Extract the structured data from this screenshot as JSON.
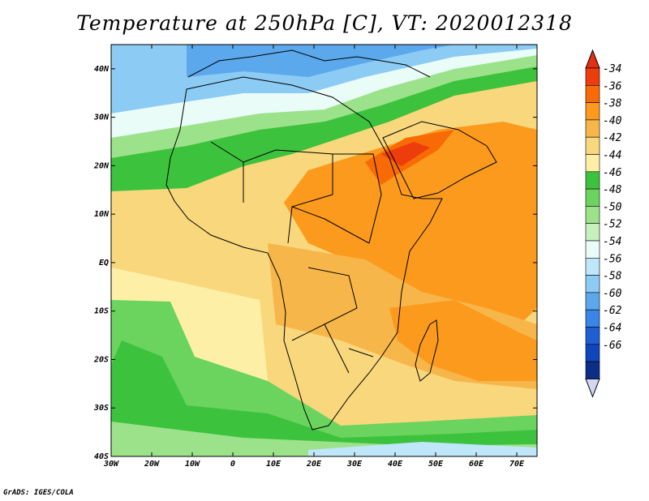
{
  "title": "Temperature at 250hPa [C], VT: 2020012318",
  "credit": "GrADS: IGES/COLA",
  "map": {
    "lon_range": [
      -30,
      75
    ],
    "lat_range": [
      -40,
      45
    ],
    "x_ticks": [
      {
        "value": -30,
        "label": "30W"
      },
      {
        "value": -20,
        "label": "20W"
      },
      {
        "value": -10,
        "label": "10W"
      },
      {
        "value": 0,
        "label": "0"
      },
      {
        "value": 10,
        "label": "10E"
      },
      {
        "value": 20,
        "label": "20E"
      },
      {
        "value": 30,
        "label": "30E"
      },
      {
        "value": 40,
        "label": "40E"
      },
      {
        "value": 50,
        "label": "50E"
      },
      {
        "value": 60,
        "label": "60E"
      },
      {
        "value": 70,
        "label": "70E"
      }
    ],
    "y_ticks": [
      {
        "value": 40,
        "label": "40N"
      },
      {
        "value": 30,
        "label": "30N"
      },
      {
        "value": 20,
        "label": "20N"
      },
      {
        "value": 10,
        "label": "10N"
      },
      {
        "value": 0,
        "label": "EQ"
      },
      {
        "value": -10,
        "label": "10S"
      },
      {
        "value": -20,
        "label": "20S"
      },
      {
        "value": -30,
        "label": "30S"
      },
      {
        "value": -40,
        "label": "40S"
      }
    ]
  },
  "colorbar": {
    "labels": [
      "-34",
      "-36",
      "-38",
      "-40",
      "-42",
      "-44",
      "-46",
      "-48",
      "-50",
      "-52",
      "-54",
      "-56",
      "-58",
      "-60",
      "-62",
      "-64",
      "-66"
    ],
    "colors": [
      "#ee3d0d",
      "#f76a06",
      "#fb9a1c",
      "#f7b64a",
      "#f9d77c",
      "#fdf0a6",
      "#3dc23e",
      "#6bd45f",
      "#9ce28a",
      "#c8f0bc",
      "#eafcf8",
      "#bfe6f9",
      "#8ccbf3",
      "#5ca8ec",
      "#3a86e6",
      "#1e5fd1",
      "#1046bb",
      "#0d2d86"
    ],
    "end_top": "#e43010",
    "end_bottom": "#d4d7f3"
  }
}
